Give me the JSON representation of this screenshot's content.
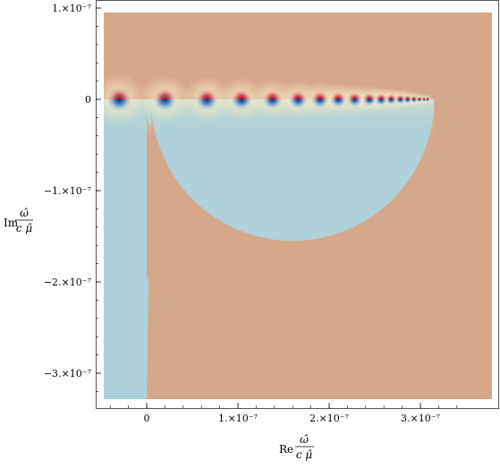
{
  "chart_data": {
    "type": "heatmap",
    "title": "",
    "xlabel": {
      "prefix": "Re",
      "numerator": "ω̂",
      "denominator": "c μ̂"
    },
    "ylabel": {
      "prefix": "Im",
      "numerator": "ω̂",
      "denominator": "c μ̂"
    },
    "xlim": [
      -5.5e-08,
      3.7e-07
    ],
    "ylim": [
      -3.35e-07,
      1e-07
    ],
    "x_ticks": [
      {
        "value": 0,
        "label": "0"
      },
      {
        "value": 1e-07,
        "label": "1.×10⁻⁷"
      },
      {
        "value": 2e-07,
        "label": "2.×10⁻⁷"
      },
      {
        "value": 3e-07,
        "label": "3.×10⁻⁷"
      }
    ],
    "y_ticks": [
      {
        "value": 1e-07,
        "label": "1.×10⁻⁷"
      },
      {
        "value": 0,
        "label": "0"
      },
      {
        "value": -1e-07,
        "label": "−1.×10⁻⁷"
      },
      {
        "value": -2e-07,
        "label": "−2.×10⁻⁷"
      },
      {
        "value": -3e-07,
        "label": "−3.×10⁻⁷"
      }
    ],
    "region_colors": {
      "background": "#d5a88a",
      "stable_region": "#aed0d8",
      "pole_positive": "#b52a3a",
      "pole_negative": "#2b62ad",
      "glow": "#f3e7c2"
    },
    "stable_half_disk": {
      "center": [
        1.6e-07,
        0
      ],
      "radius": 1.55e-07
    },
    "stable_strip": {
      "x_range": [
        -5e-08,
        0
      ],
      "y_range": [
        -3.3e-07,
        0
      ]
    },
    "poles_x": [
      -3e-08,
      2e-08,
      6.6e-08,
      1.04e-07,
      1.38e-07,
      1.66e-07,
      1.9e-07,
      2.1e-07,
      2.28e-07,
      2.44e-07,
      2.57e-07,
      2.68e-07,
      2.78e-07,
      2.86e-07,
      2.93e-07,
      2.99e-07,
      3.04e-07,
      3.08e-07
    ],
    "grid": false,
    "legend": "none"
  }
}
